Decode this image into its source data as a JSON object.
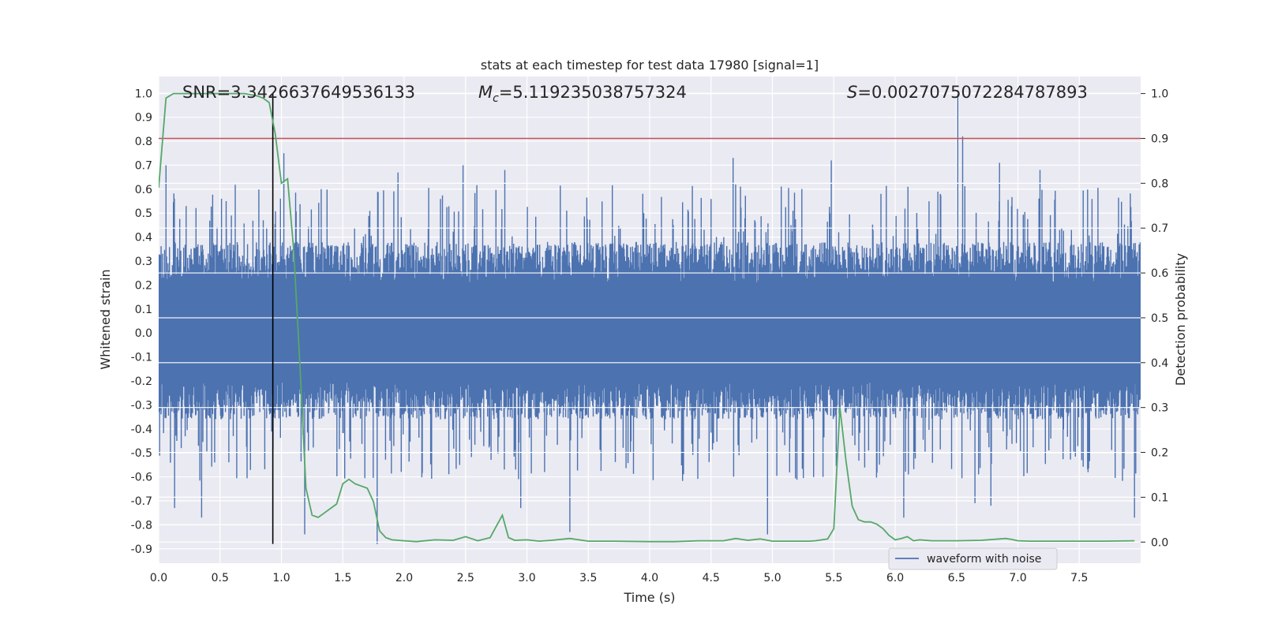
{
  "chart_data": {
    "type": "line",
    "title": "stats at each timestep for test data 17980 [signal=1]",
    "xlabel": "Time (s)",
    "ylabel": "Whitened strain",
    "y2label": "Detection probability",
    "xlim": [
      0.0,
      8.0
    ],
    "ylim": [
      -0.96,
      1.07
    ],
    "y2lim": [
      -0.047,
      1.038
    ],
    "xticks": [
      0.0,
      0.5,
      1.0,
      1.5,
      2.0,
      2.5,
      3.0,
      3.5,
      4.0,
      4.5,
      5.0,
      5.5,
      6.0,
      6.5,
      7.0,
      7.5
    ],
    "xtick_labels": [
      "0.0",
      "0.5",
      "1.0",
      "1.5",
      "2.0",
      "2.5",
      "3.0",
      "3.5",
      "4.0",
      "4.5",
      "5.0",
      "5.5",
      "6.0",
      "6.5",
      "7.0",
      "7.5"
    ],
    "yticks": [
      1.0,
      0.9,
      0.8,
      0.7,
      0.6,
      0.5,
      0.4,
      0.3,
      0.2,
      0.1,
      0.0,
      -0.1,
      -0.2,
      -0.3,
      -0.4,
      -0.5,
      -0.6,
      -0.7,
      -0.8,
      -0.9
    ],
    "ytick_labels": [
      "1.0",
      "0.9",
      "0.8",
      "0.7",
      "0.6",
      "0.5",
      "0.4",
      "0.3",
      "0.2",
      "0.1",
      "0.0",
      "-0.1",
      "-0.2",
      "-0.3",
      "-0.4",
      "-0.5",
      "-0.6",
      "-0.7",
      "-0.8",
      "-0.9"
    ],
    "y2ticks": [
      1.0,
      0.9,
      0.8,
      0.7,
      0.6,
      0.5,
      0.4,
      0.3,
      0.2,
      0.1,
      0.0
    ],
    "y2tick_labels": [
      "1.0",
      "0.9",
      "0.8",
      "0.7",
      "0.6",
      "0.5",
      "0.4",
      "0.3",
      "0.2",
      "0.1",
      "0.0"
    ],
    "grid": true,
    "legend": {
      "placement": "lower-right",
      "entries": [
        "waveform with noise"
      ]
    },
    "annotations": {
      "snr": "SNR=3.3426637649536133",
      "mc_symbol": "M",
      "mc_sub": "c",
      "mc_value": "=5.119235038757324",
      "s_symbol": "S",
      "s_value": "=0.0027075072284787893"
    },
    "threshold_line": {
      "y2": 0.9,
      "color": "#c44e52"
    },
    "vertical_marker": {
      "x": 0.93,
      "color": "#000000"
    },
    "waveform": {
      "name": "waveform with noise",
      "color": "#4c72b0",
      "duration": 8.0,
      "typical_max": 0.38,
      "typical_min": -0.36,
      "spike_peaks": [
        {
          "x": 0.06,
          "y": 0.7
        },
        {
          "x": 0.55,
          "y": 0.55
        },
        {
          "x": 1.02,
          "y": 0.75
        },
        {
          "x": 1.95,
          "y": 0.67
        },
        {
          "x": 2.48,
          "y": 0.7
        },
        {
          "x": 2.82,
          "y": 0.68
        },
        {
          "x": 4.68,
          "y": 0.73
        },
        {
          "x": 5.48,
          "y": 0.72
        },
        {
          "x": 6.51,
          "y": 1.0
        },
        {
          "x": 6.55,
          "y": 0.82
        },
        {
          "x": 6.85,
          "y": 0.71
        },
        {
          "x": 7.18,
          "y": 0.68
        }
      ],
      "spike_troughs": [
        {
          "x": 0.13,
          "y": -0.73
        },
        {
          "x": 0.35,
          "y": -0.77
        },
        {
          "x": 1.19,
          "y": -0.84
        },
        {
          "x": 1.78,
          "y": -0.88
        },
        {
          "x": 2.95,
          "y": -0.73
        },
        {
          "x": 3.35,
          "y": -0.83
        },
        {
          "x": 4.96,
          "y": -0.84
        },
        {
          "x": 6.07,
          "y": -0.77
        },
        {
          "x": 6.65,
          "y": -0.71
        },
        {
          "x": 6.78,
          "y": -0.72
        },
        {
          "x": 7.95,
          "y": -0.77
        }
      ]
    },
    "detection_probability": {
      "color": "#55a868",
      "x": [
        0.0,
        0.06,
        0.12,
        0.2,
        0.3,
        0.4,
        0.5,
        0.6,
        0.7,
        0.8,
        0.85,
        0.9,
        0.95,
        1.0,
        1.05,
        1.1,
        1.15,
        1.2,
        1.25,
        1.3,
        1.35,
        1.4,
        1.45,
        1.5,
        1.55,
        1.6,
        1.65,
        1.7,
        1.75,
        1.8,
        1.85,
        1.9,
        2.0,
        2.1,
        2.25,
        2.4,
        2.5,
        2.6,
        2.7,
        2.8,
        2.85,
        2.9,
        3.0,
        3.1,
        3.2,
        3.35,
        3.5,
        3.7,
        4.0,
        4.2,
        4.4,
        4.6,
        4.7,
        4.8,
        4.9,
        5.0,
        5.2,
        5.3,
        5.35,
        5.45,
        5.5,
        5.55,
        5.6,
        5.65,
        5.7,
        5.75,
        5.8,
        5.85,
        5.9,
        5.95,
        6.0,
        6.05,
        6.1,
        6.15,
        6.2,
        6.3,
        6.5,
        6.7,
        6.9,
        6.95,
        7.0,
        7.1,
        7.5,
        7.7,
        7.95
      ],
      "y": [
        0.79,
        0.99,
        1.0,
        1.0,
        1.0,
        1.0,
        1.0,
        1.0,
        1.0,
        0.995,
        0.99,
        0.98,
        0.91,
        0.8,
        0.81,
        0.65,
        0.4,
        0.12,
        0.06,
        0.055,
        0.065,
        0.075,
        0.085,
        0.13,
        0.14,
        0.13,
        0.125,
        0.12,
        0.09,
        0.025,
        0.01,
        0.005,
        0.003,
        0.001,
        0.005,
        0.004,
        0.012,
        0.003,
        0.01,
        0.06,
        0.01,
        0.004,
        0.005,
        0.002,
        0.004,
        0.008,
        0.002,
        0.002,
        0.001,
        0.001,
        0.003,
        0.003,
        0.008,
        0.004,
        0.007,
        0.002,
        0.002,
        0.002,
        0.003,
        0.007,
        0.03,
        0.3,
        0.18,
        0.08,
        0.05,
        0.045,
        0.045,
        0.04,
        0.03,
        0.015,
        0.005,
        0.008,
        0.012,
        0.003,
        0.005,
        0.003,
        0.003,
        0.004,
        0.008,
        0.006,
        0.003,
        0.002,
        0.002,
        0.002,
        0.003
      ]
    }
  }
}
